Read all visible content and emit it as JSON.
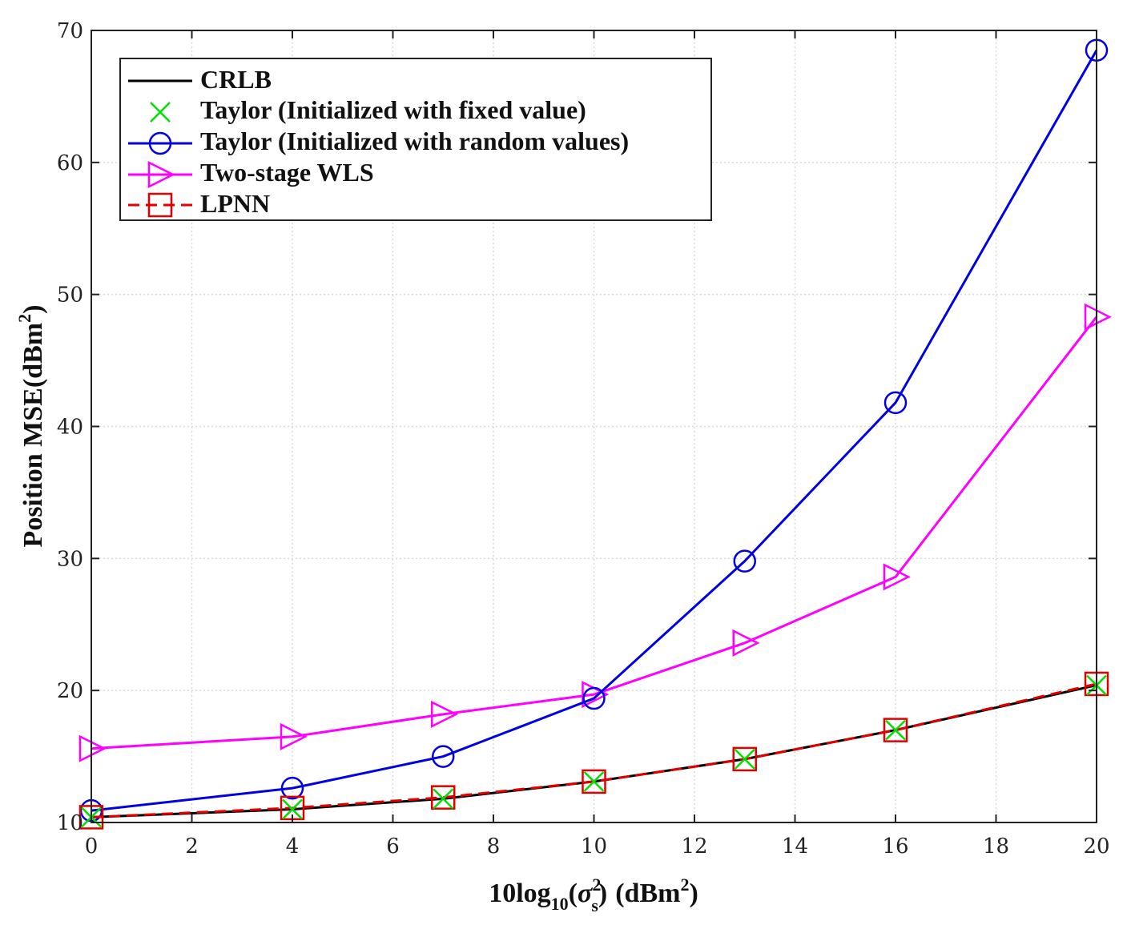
{
  "chart_data": {
    "type": "line",
    "xlabel": {
      "main": "10log",
      "sub1": "10",
      "paren_open": "(",
      "sigma": "σ",
      "sup": "2",
      "sub2": "s",
      "paren_close": ")",
      "unit_main": "(dBm",
      "unit_sup": "2",
      "unit_close": ")"
    },
    "ylabel": {
      "main": "Position MSE(dBm",
      "sup": "2",
      "close": ")"
    },
    "xlim": [
      0,
      20
    ],
    "ylim": [
      10,
      70
    ],
    "xticks": [
      "0",
      "2",
      "4",
      "6",
      "8",
      "10",
      "12",
      "14",
      "16",
      "18",
      "20"
    ],
    "yticks": [
      "10",
      "20",
      "30",
      "40",
      "50",
      "60",
      "70"
    ],
    "grid": true,
    "legend_position": "top-left",
    "x": [
      0,
      4,
      7,
      10,
      13,
      16,
      20
    ],
    "series": [
      {
        "name": "CRLB",
        "color": "#000000",
        "marker": "none",
        "dash": "solid",
        "values": [
          10.4,
          11.0,
          11.8,
          13.1,
          14.8,
          17.0,
          20.4
        ]
      },
      {
        "name": "Taylor (Initialized with fixed value)",
        "color": "#00e000",
        "marker": "x",
        "dash": "none",
        "values": [
          10.4,
          11.0,
          11.8,
          13.1,
          14.8,
          17.0,
          20.4
        ]
      },
      {
        "name": "Taylor (Initialized with random values)",
        "color": "#0000e0",
        "marker": "circle",
        "dash": "solid",
        "values": [
          10.9,
          12.6,
          15.0,
          19.4,
          29.8,
          41.8,
          68.5
        ]
      },
      {
        "name": "Two-stage WLS",
        "color": "#ff00ff",
        "marker": "triangle-right",
        "dash": "solid",
        "values": [
          15.6,
          16.5,
          18.2,
          19.7,
          23.6,
          28.6,
          48.3
        ]
      },
      {
        "name": "LPNN",
        "color": "#e00000",
        "marker": "square",
        "dash": "dashed",
        "values": [
          10.4,
          11.1,
          11.9,
          13.1,
          14.8,
          17.0,
          20.5
        ]
      }
    ]
  }
}
